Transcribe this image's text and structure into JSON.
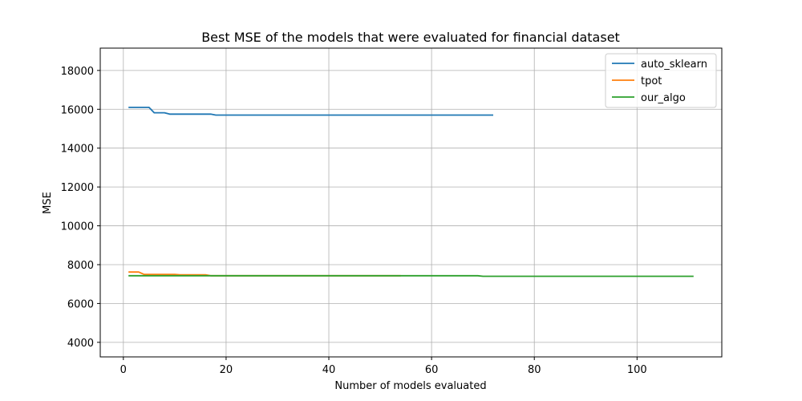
{
  "chart_data": {
    "type": "line",
    "title": "Best MSE of the models that were evaluated for financial dataset",
    "xlabel": "Number of models evaluated",
    "ylabel": "MSE",
    "xlim": [
      -4.5,
      116.5
    ],
    "ylim": [
      3250,
      19150
    ],
    "xticks": [
      0,
      20,
      40,
      60,
      80,
      100
    ],
    "yticks": [
      4000,
      6000,
      8000,
      10000,
      12000,
      14000,
      16000,
      18000
    ],
    "grid": true,
    "legend_position": "top-right",
    "series": [
      {
        "name": "auto_sklearn",
        "color": "#1f77b4",
        "points": [
          [
            1,
            16100
          ],
          [
            5,
            16100
          ],
          [
            6,
            15820
          ],
          [
            8,
            15820
          ],
          [
            9,
            15750
          ],
          [
            17,
            15750
          ],
          [
            18,
            15700
          ],
          [
            72,
            15700
          ]
        ]
      },
      {
        "name": "tpot",
        "color": "#ff7f0e",
        "points": [
          [
            1,
            7620
          ],
          [
            3,
            7620
          ],
          [
            4,
            7500
          ],
          [
            10,
            7500
          ],
          [
            11,
            7480
          ],
          [
            16,
            7480
          ],
          [
            17,
            7430
          ],
          [
            54,
            7430
          ]
        ]
      },
      {
        "name": "our_algo",
        "color": "#2ca02c",
        "points": [
          [
            1,
            7430
          ],
          [
            69,
            7430
          ],
          [
            70,
            7400
          ],
          [
            111,
            7400
          ]
        ]
      }
    ]
  }
}
